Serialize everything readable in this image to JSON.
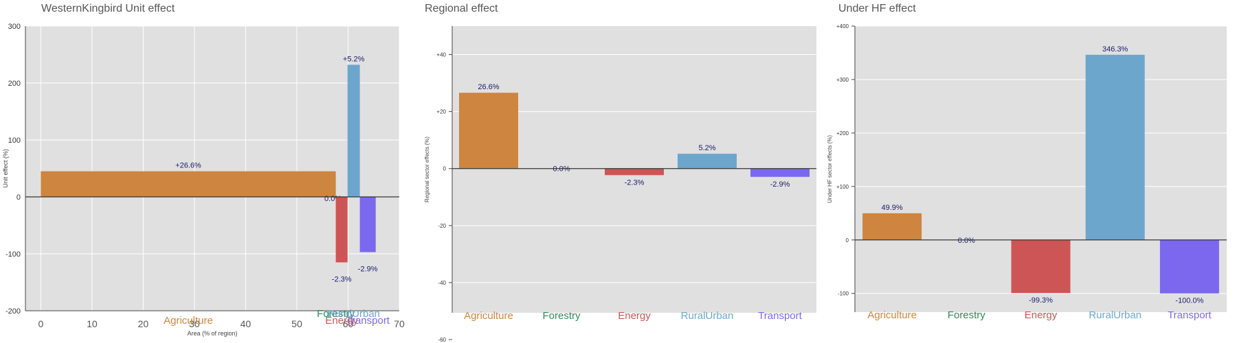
{
  "chart_data": [
    {
      "type": "bar",
      "title": "WesternKingbird Unit effect",
      "xlabel": "Area (% of region)",
      "ylabel": "Unit effect (%)",
      "xlim": [
        -3,
        70
      ],
      "ylim": [
        -200,
        300
      ],
      "xticks": [
        0,
        10,
        20,
        30,
        40,
        50,
        60,
        70
      ],
      "yticks": [
        -200,
        -100,
        0,
        100,
        200,
        300
      ],
      "grid": true,
      "series": [
        {
          "category": "Agriculture",
          "x_start": 0,
          "x_end": 57.6,
          "value": 45,
          "label": "+26.6%",
          "color": "#CD853F"
        },
        {
          "category": "Forestry",
          "x_start": 57.6,
          "x_end": 57.6,
          "value": 0,
          "label": "0.0%",
          "color": "#2E8B57"
        },
        {
          "category": "Energy",
          "x_start": 57.6,
          "x_end": 59.9,
          "value": -115,
          "label": "-2.3%",
          "color": "#CD5555"
        },
        {
          "category": "RuralUrban",
          "x_start": 59.9,
          "x_end": 62.3,
          "value": 232,
          "label": "+5.2%",
          "color": "#6CA6CD"
        },
        {
          "category": "Transport",
          "x_start": 62.3,
          "x_end": 65.4,
          "value": -97,
          "label": "-2.9%",
          "color": "#7B68EE"
        }
      ]
    },
    {
      "type": "bar",
      "title": "Regional effect",
      "xlabel": "",
      "ylabel": "Regional sector effects (%)",
      "ylim": [
        -60,
        50
      ],
      "yticks": [
        -60,
        -40,
        -20,
        0,
        20,
        40
      ],
      "ytick_labels": [
        "-60",
        "-40",
        "-20",
        "0",
        "+20",
        "+40"
      ],
      "grid": true,
      "categories": [
        "Agriculture",
        "Forestry",
        "Energy",
        "RuralUrban",
        "Transport"
      ],
      "values": [
        26.6,
        0.0,
        -2.3,
        5.2,
        -2.9
      ],
      "labels": [
        "26.6%",
        "0.0%",
        "-2.3%",
        "5.2%",
        "-2.9%"
      ],
      "colors": [
        "#CD853F",
        "#2E8B57",
        "#CD5555",
        "#6CA6CD",
        "#7B68EE"
      ]
    },
    {
      "type": "bar",
      "title": "Under HF effect",
      "xlabel": "",
      "ylabel": "Under HF sector effects (%)",
      "ylim": [
        -135,
        400
      ],
      "yticks": [
        -100,
        0,
        100,
        200,
        300,
        400
      ],
      "ytick_labels": [
        "-100",
        "0",
        "+100",
        "+200",
        "+300",
        "+400"
      ],
      "grid": true,
      "categories": [
        "Agriculture",
        "Forestry",
        "Energy",
        "RuralUrban",
        "Transport"
      ],
      "values": [
        49.9,
        0.0,
        -99.3,
        346.3,
        -100.0
      ],
      "labels": [
        "49.9%",
        "0.0%",
        "-99.3%",
        "346.3%",
        "-100.0%"
      ],
      "colors": [
        "#CD853F",
        "#2E8B57",
        "#CD5555",
        "#6CA6CD",
        "#7B68EE"
      ]
    }
  ]
}
